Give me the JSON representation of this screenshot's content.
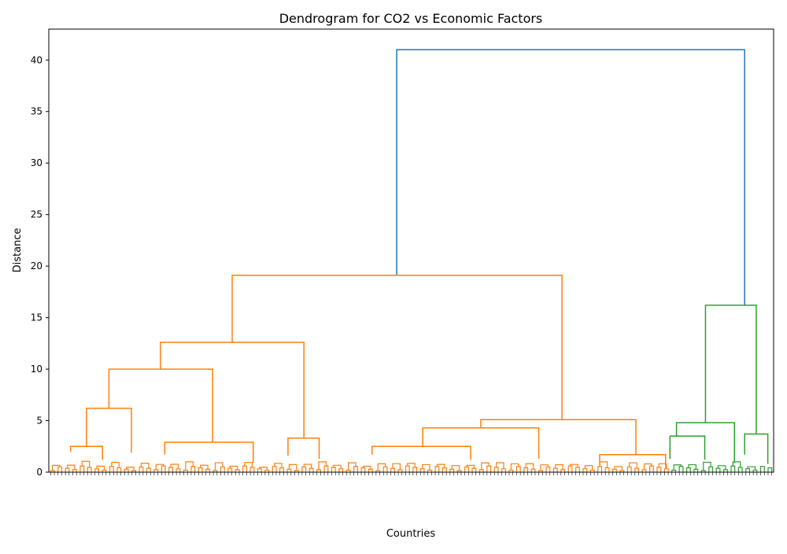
{
  "chart_data": {
    "type": "dendrogram",
    "title": "Dendrogram for CO2 vs Economic Factors",
    "xlabel": "Countries",
    "ylabel": "Distance",
    "ylim": [
      0,
      43
    ],
    "yticks": [
      0,
      5,
      10,
      15,
      20,
      25,
      30,
      35,
      40
    ],
    "ytick_labels": [
      "0",
      "5",
      "10",
      "15",
      "20",
      "25",
      "30",
      "35",
      "40"
    ],
    "x_range": [
      0,
      1000
    ],
    "leaf_count": 196,
    "colors": {
      "orange_cluster": "#ff7f0e",
      "green_cluster": "#2ca02c",
      "above_threshold": "#1f77b4"
    },
    "major_merges": [
      {
        "name": "root",
        "left": 480,
        "right": 960,
        "height": 41.0,
        "left_child_height": 19.1,
        "right_child_height": 16.2,
        "color": "above_threshold"
      },
      {
        "name": "orange-top",
        "left": 253,
        "right": 708,
        "height": 19.1,
        "left_child_height": 12.6,
        "right_child_height": 5.1,
        "color": "orange_cluster"
      },
      {
        "name": "orange-left",
        "left": 154,
        "right": 352,
        "height": 12.6,
        "left_child_height": 10.0,
        "right_child_height": 3.3,
        "color": "orange_cluster"
      },
      {
        "name": "orange-left-a",
        "left": 83,
        "right": 226,
        "height": 10.0,
        "left_child_height": 6.2,
        "right_child_height": 2.9,
        "color": "orange_cluster"
      },
      {
        "name": "orange-left-a1",
        "left": 52,
        "right": 114,
        "height": 6.2,
        "left_child_height": 2.5,
        "right_child_height": 1.9,
        "color": "orange_cluster"
      },
      {
        "name": "orange-left-a1a",
        "left": 30,
        "right": 74,
        "height": 2.5,
        "left_child_height": 2.0,
        "right_child_height": 1.2,
        "color": "orange_cluster"
      },
      {
        "name": "orange-left-a2",
        "left": 160,
        "right": 282,
        "height": 2.9,
        "left_child_height": 1.7,
        "right_child_height": 0.9,
        "color": "orange_cluster"
      },
      {
        "name": "orange-left-b",
        "left": 330,
        "right": 373,
        "height": 3.3,
        "left_child_height": 1.6,
        "right_child_height": 1.3,
        "color": "orange_cluster"
      },
      {
        "name": "orange-right",
        "left": 596,
        "right": 810,
        "height": 5.1,
        "left_child_height": 4.3,
        "right_child_height": 1.7,
        "color": "orange_cluster"
      },
      {
        "name": "orange-right-a",
        "left": 516,
        "right": 676,
        "height": 4.3,
        "left_child_height": 2.5,
        "right_child_height": 1.3,
        "color": "orange_cluster"
      },
      {
        "name": "orange-right-a1",
        "left": 446,
        "right": 582,
        "height": 2.5,
        "left_child_height": 1.7,
        "right_child_height": 1.2,
        "color": "orange_cluster"
      },
      {
        "name": "orange-right-b",
        "left": 760,
        "right": 851,
        "height": 1.7,
        "left_child_height": 0.7,
        "right_child_height": 0.4,
        "color": "orange_cluster"
      },
      {
        "name": "green-top",
        "left": 906,
        "right": 976,
        "height": 16.2,
        "left_child_height": 4.8,
        "right_child_height": 3.7,
        "color": "green_cluster"
      },
      {
        "name": "green-left",
        "left": 866,
        "right": 946,
        "height": 4.8,
        "left_child_height": 3.5,
        "right_child_height": 0.9,
        "color": "green_cluster"
      },
      {
        "name": "green-left-a",
        "left": 857,
        "right": 905,
        "height": 3.5,
        "left_child_height": 1.3,
        "right_child_height": 1.2,
        "color": "green_cluster"
      },
      {
        "name": "green-right",
        "left": 960,
        "right": 992,
        "height": 3.7,
        "left_child_height": 1.7,
        "right_child_height": 0.8,
        "color": "green_cluster"
      }
    ]
  }
}
